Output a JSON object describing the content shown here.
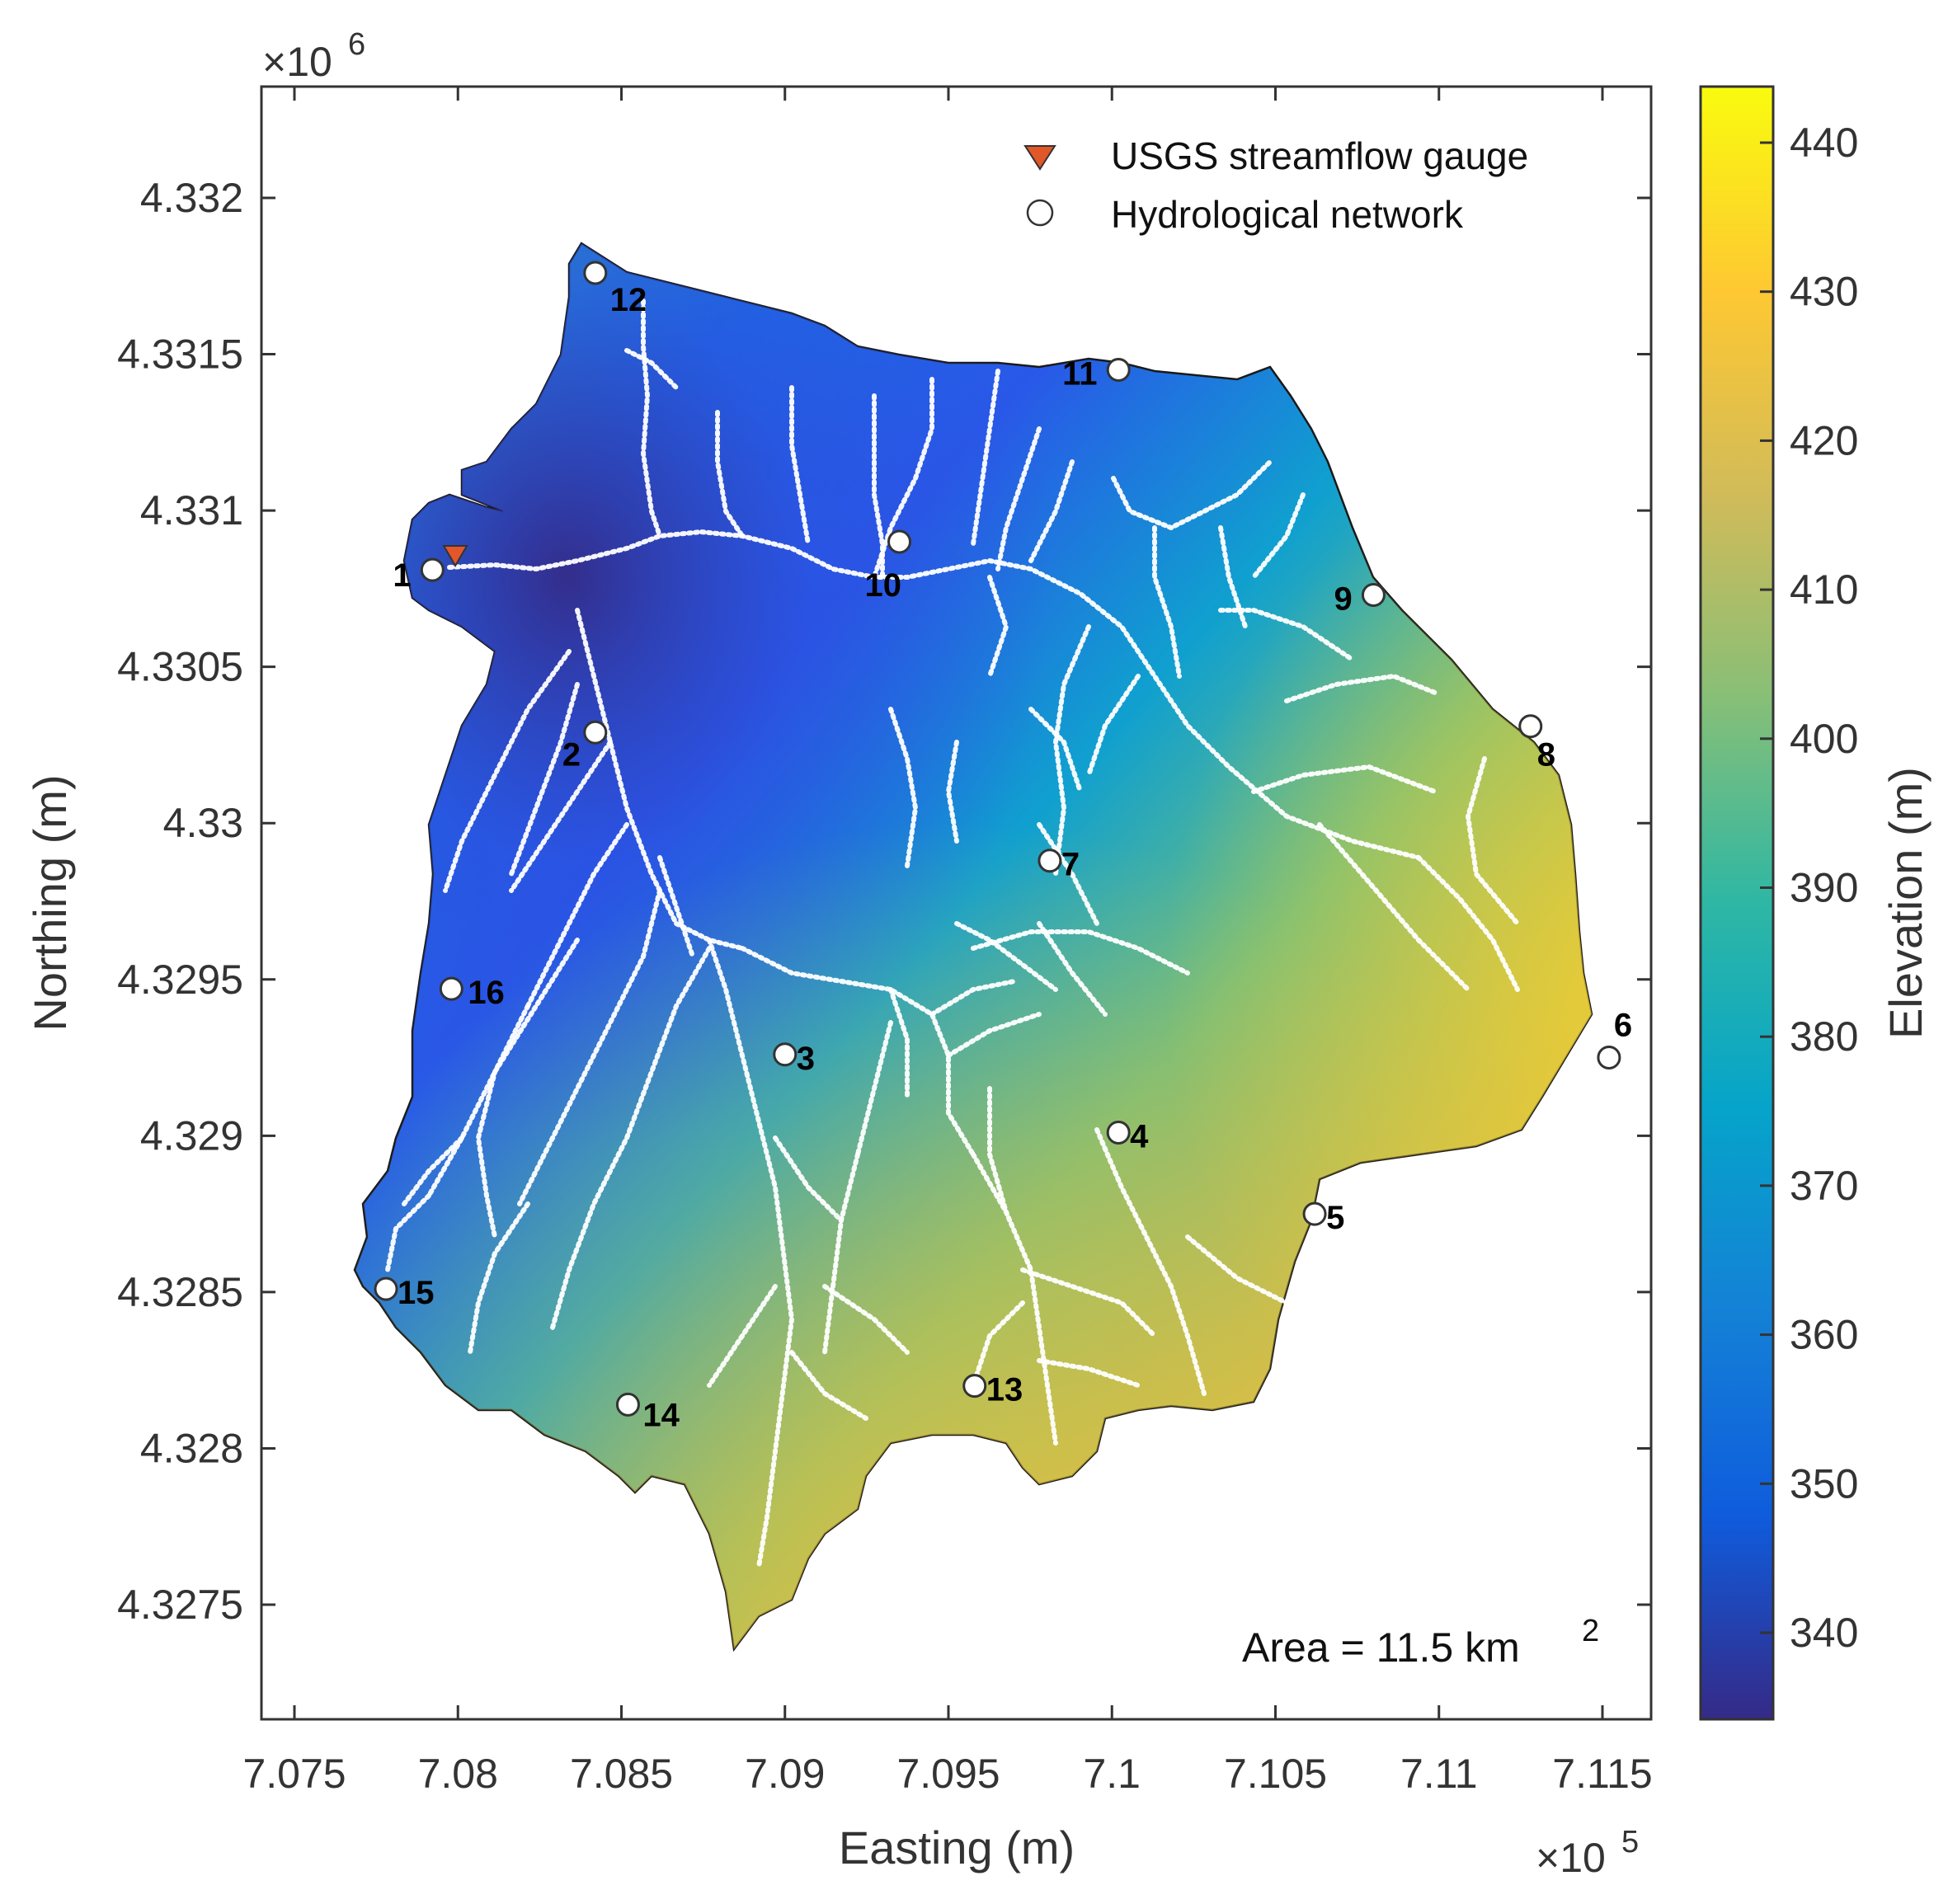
{
  "map": {
    "x_axis": {
      "label": "Easting (m)",
      "multiplier": "×10",
      "multiplier_exp": "5",
      "ticks": [
        "7.075",
        "7.08",
        "7.085",
        "7.09",
        "7.095",
        "7.1",
        "7.105",
        "7.11",
        "7.115"
      ]
    },
    "y_axis": {
      "label": "Northing (m)",
      "multiplier": "×10",
      "multiplier_exp": "6",
      "ticks": [
        "4.332",
        "4.3315",
        "4.331",
        "4.3305",
        "4.33",
        "4.3295",
        "4.329",
        "4.3285",
        "4.328",
        "4.3275"
      ]
    },
    "colorbar": {
      "label": "Elevation (m)",
      "ticks": [
        "440",
        "430",
        "420",
        "410",
        "400",
        "390",
        "380",
        "370",
        "360",
        "350",
        "340"
      ],
      "colormap": "parula",
      "colors": [
        "#352a87",
        "#0f5cdd",
        "#1481d6",
        "#06a4ca",
        "#2eb7a4",
        "#87bf77",
        "#d1bb59",
        "#fec832",
        "#f9fb0e"
      ]
    },
    "legend": {
      "gauge_label": "USGS streamflow gauge",
      "gauge_color": "#e2572a",
      "network_label": "Hydrological network"
    },
    "area_text": "Area = 11.5 km",
    "area_exp": "2",
    "stations": [
      {
        "id": "1",
        "easting": 707922,
        "northing": 4330810
      },
      {
        "id": "2",
        "easting": 708420,
        "northing": 4330290
      },
      {
        "id": "3",
        "easting": 709000,
        "northing": 4329260
      },
      {
        "id": "4",
        "easting": 710020,
        "northing": 4329010
      },
      {
        "id": "5",
        "easting": 710620,
        "northing": 4328750
      },
      {
        "id": "6",
        "easting": 711520,
        "northing": 4329250
      },
      {
        "id": "7",
        "easting": 709810,
        "northing": 4329880
      },
      {
        "id": "8",
        "easting": 711280,
        "northing": 4330310
      },
      {
        "id": "9",
        "easting": 710800,
        "northing": 4330730
      },
      {
        "id": "10",
        "easting": 709350,
        "northing": 4330900
      },
      {
        "id": "11",
        "easting": 710020,
        "northing": 4331450
      },
      {
        "id": "12",
        "easting": 708420,
        "northing": 4331760
      },
      {
        "id": "13",
        "easting": 709580,
        "northing": 4328200
      },
      {
        "id": "14",
        "easting": 708520,
        "northing": 4328140
      },
      {
        "id": "15",
        "easting": 707780,
        "northing": 4328510
      },
      {
        "id": "16",
        "easting": 707980,
        "northing": 4329470
      }
    ],
    "gauge": {
      "easting": 707992,
      "northing": 4330850
    }
  }
}
